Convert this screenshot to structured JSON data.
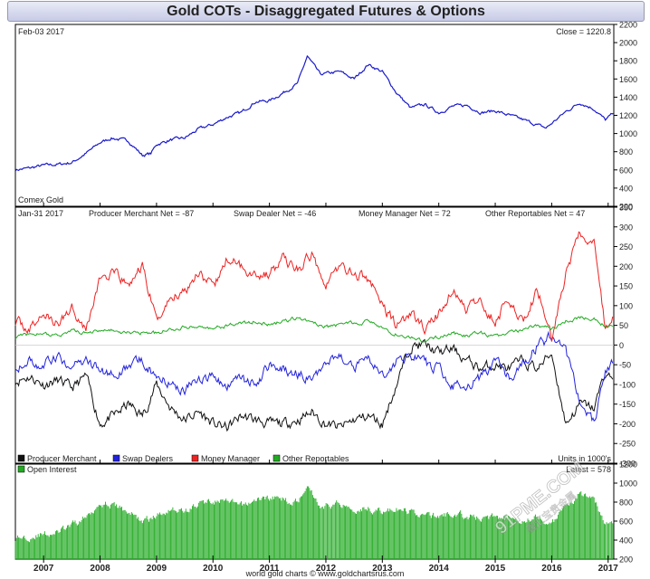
{
  "chart_data": [
    {
      "type": "line",
      "title": "Gold COTs - Disaggregated Futures & Options",
      "date_label": "Feb-03 2017",
      "close_label": "Close = 1220.8",
      "source_label": "Comex Gold",
      "ylim": [
        200,
        2200
      ],
      "yticks": [
        200,
        400,
        600,
        800,
        1000,
        1200,
        1400,
        1600,
        1800,
        2000,
        2200
      ],
      "series": [
        {
          "color": "#1a1acc",
          "x": [
            2006.5,
            2006.75,
            2007.0,
            2007.25,
            2007.5,
            2007.75,
            2008.0,
            2008.2,
            2008.5,
            2008.75,
            2008.9,
            2009.0,
            2009.25,
            2009.5,
            2009.75,
            2010.0,
            2010.25,
            2010.5,
            2010.75,
            2011.0,
            2011.25,
            2011.5,
            2011.67,
            2011.9,
            2012.25,
            2012.5,
            2012.75,
            2013.0,
            2013.25,
            2013.5,
            2013.75,
            2014.0,
            2014.25,
            2014.5,
            2014.75,
            2015.0,
            2015.25,
            2015.5,
            2015.9,
            2016.25,
            2016.5,
            2016.75,
            2016.95,
            2017.09
          ],
          "y": [
            600,
            620,
            650,
            660,
            680,
            780,
            900,
            950,
            920,
            760,
            780,
            880,
            930,
            950,
            1050,
            1100,
            1180,
            1230,
            1350,
            1360,
            1450,
            1550,
            1850,
            1650,
            1680,
            1600,
            1760,
            1680,
            1450,
            1280,
            1320,
            1230,
            1300,
            1310,
            1230,
            1250,
            1200,
            1150,
            1060,
            1240,
            1340,
            1270,
            1150,
            1220
          ]
        }
      ]
    },
    {
      "type": "line",
      "date_label": "Jan-31 2017",
      "annotations": [
        "Producer Merchant Net = -87",
        "Swap Dealer Net = -46",
        "Money Manager Net = 72",
        "Other Reportables Net = 47"
      ],
      "ylim": [
        -300,
        350
      ],
      "yticks": [
        -300,
        -250,
        -200,
        -150,
        -100,
        -50,
        0,
        50,
        100,
        150,
        200,
        250,
        300,
        350
      ],
      "legend": "bottom-left",
      "units_label": "Units in 1000's",
      "series": [
        {
          "name": "Producer Merchant",
          "color": "#111111",
          "x": [
            2006.5,
            2006.75,
            2007.0,
            2007.25,
            2007.5,
            2007.75,
            2008.0,
            2008.25,
            2008.5,
            2008.75,
            2009.0,
            2009.25,
            2009.5,
            2009.75,
            2010.0,
            2010.25,
            2010.5,
            2010.75,
            2011.0,
            2011.25,
            2011.5,
            2011.75,
            2012.0,
            2012.25,
            2012.5,
            2012.75,
            2013.0,
            2013.25,
            2013.5,
            2013.75,
            2014.0,
            2014.25,
            2014.5,
            2014.75,
            2015.0,
            2015.25,
            2015.5,
            2015.75,
            2016.0,
            2016.25,
            2016.5,
            2016.75,
            2016.95,
            2017.08
          ],
          "y": [
            -90,
            -80,
            -100,
            -90,
            -110,
            -80,
            -200,
            -180,
            -150,
            -180,
            -100,
            -160,
            -190,
            -170,
            -200,
            -210,
            -180,
            -190,
            -200,
            -200,
            -190,
            -170,
            -200,
            -210,
            -190,
            -180,
            -200,
            -100,
            0,
            0,
            -20,
            -10,
            -40,
            -60,
            -50,
            -60,
            -40,
            -60,
            -20,
            -200,
            -150,
            -160,
            -70,
            -87
          ]
        },
        {
          "name": "Swap Dealers",
          "color": "#2222dd",
          "x": [
            2006.5,
            2006.75,
            2007.0,
            2007.25,
            2007.5,
            2007.75,
            2008.0,
            2008.25,
            2008.5,
            2008.75,
            2009.0,
            2009.25,
            2009.5,
            2009.75,
            2010.0,
            2010.25,
            2010.5,
            2010.75,
            2011.0,
            2011.25,
            2011.5,
            2011.75,
            2012.0,
            2012.25,
            2012.5,
            2012.75,
            2013.0,
            2013.25,
            2013.5,
            2013.75,
            2014.0,
            2014.25,
            2014.5,
            2014.75,
            2015.0,
            2015.25,
            2015.5,
            2015.75,
            2016.0,
            2016.25,
            2016.5,
            2016.75,
            2016.95,
            2017.08
          ],
          "y": [
            -50,
            -40,
            -50,
            -30,
            -60,
            -40,
            -60,
            -80,
            -60,
            -40,
            -80,
            -100,
            -110,
            -90,
            -80,
            -100,
            -90,
            -100,
            -50,
            -60,
            -70,
            -90,
            -50,
            -20,
            -60,
            -30,
            -80,
            -40,
            -20,
            -50,
            -60,
            -100,
            -110,
            -80,
            -40,
            -80,
            -50,
            0,
            20,
            -20,
            -150,
            -200,
            -70,
            -46
          ]
        },
        {
          "name": "Money Manager",
          "color": "#ee2222",
          "x": [
            2006.5,
            2006.75,
            2007.0,
            2007.25,
            2007.5,
            2007.75,
            2008.0,
            2008.25,
            2008.5,
            2008.75,
            2009.0,
            2009.25,
            2009.5,
            2009.75,
            2010.0,
            2010.25,
            2010.5,
            2010.75,
            2011.0,
            2011.25,
            2011.5,
            2011.75,
            2012.0,
            2012.25,
            2012.5,
            2012.75,
            2013.0,
            2013.25,
            2013.5,
            2013.75,
            2014.0,
            2014.25,
            2014.5,
            2014.75,
            2015.0,
            2015.25,
            2015.5,
            2015.75,
            2016.0,
            2016.25,
            2016.5,
            2016.75,
            2016.95,
            2017.08
          ],
          "y": [
            60,
            40,
            80,
            50,
            100,
            40,
            170,
            180,
            150,
            200,
            60,
            120,
            140,
            190,
            140,
            220,
            200,
            180,
            180,
            220,
            190,
            230,
            160,
            200,
            180,
            170,
            100,
            50,
            80,
            40,
            80,
            140,
            90,
            110,
            60,
            120,
            60,
            140,
            20,
            180,
            280,
            260,
            40,
            72
          ]
        },
        {
          "name": "Other Reportables",
          "color": "#22aa22",
          "x": [
            2006.5,
            2006.75,
            2007.0,
            2007.25,
            2007.5,
            2007.75,
            2008.0,
            2008.25,
            2008.5,
            2008.75,
            2009.0,
            2009.25,
            2009.5,
            2009.75,
            2010.0,
            2010.25,
            2010.5,
            2010.75,
            2011.0,
            2011.25,
            2011.5,
            2011.75,
            2012.0,
            2012.25,
            2012.5,
            2012.75,
            2013.0,
            2013.25,
            2013.5,
            2013.75,
            2014.0,
            2014.25,
            2014.5,
            2014.75,
            2015.0,
            2015.25,
            2015.5,
            2015.75,
            2016.0,
            2016.25,
            2016.5,
            2016.75,
            2016.95,
            2017.08
          ],
          "y": [
            20,
            25,
            30,
            25,
            35,
            30,
            40,
            35,
            30,
            30,
            30,
            40,
            45,
            50,
            40,
            50,
            55,
            60,
            50,
            60,
            70,
            60,
            45,
            50,
            55,
            60,
            40,
            30,
            20,
            10,
            20,
            30,
            25,
            30,
            20,
            30,
            40,
            50,
            40,
            60,
            70,
            65,
            50,
            47
          ]
        }
      ]
    },
    {
      "type": "bar",
      "title": "Open Interest",
      "value_label": "Latest = 578",
      "color": "#22aa22",
      "ylim": [
        200,
        1200
      ],
      "yticks": [
        200,
        400,
        600,
        800,
        1000,
        1200
      ],
      "x": [
        2006.5,
        2006.75,
        2007.0,
        2007.25,
        2007.5,
        2007.75,
        2008.0,
        2008.25,
        2008.5,
        2008.75,
        2009.0,
        2009.25,
        2009.5,
        2009.75,
        2010.0,
        2010.25,
        2010.5,
        2010.75,
        2011.0,
        2011.25,
        2011.5,
        2011.67,
        2011.9,
        2012.25,
        2012.5,
        2012.75,
        2013.0,
        2013.25,
        2013.5,
        2013.75,
        2014.0,
        2014.25,
        2014.5,
        2014.75,
        2015.0,
        2015.25,
        2015.5,
        2015.75,
        2016.0,
        2016.25,
        2016.5,
        2016.75,
        2016.95,
        2017.08
      ],
      "y": [
        420,
        440,
        460,
        480,
        550,
        640,
        800,
        760,
        700,
        600,
        650,
        740,
        700,
        780,
        820,
        800,
        760,
        820,
        850,
        830,
        800,
        1000,
        750,
        790,
        730,
        740,
        700,
        720,
        700,
        660,
        650,
        680,
        650,
        630,
        640,
        660,
        620,
        640,
        570,
        740,
        900,
        800,
        600,
        578
      ]
    }
  ],
  "x_axis": {
    "tick_labels": [
      "2007",
      "2008",
      "2009",
      "2010",
      "2011",
      "2012",
      "2013",
      "2014",
      "2015",
      "2016",
      "2017"
    ],
    "range": [
      2006.5,
      2017.1
    ]
  },
  "footer": {
    "credit": "world gold charts © www.goldchartsrus.com"
  },
  "watermark": {
    "text": "91PME.COM",
    "sub": "鑫汇宝贵金属"
  }
}
